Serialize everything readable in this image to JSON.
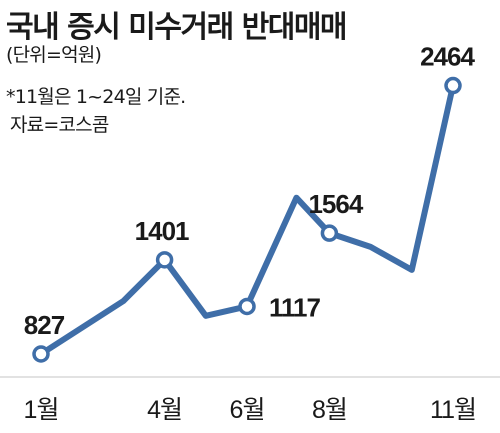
{
  "header": {
    "title": "국내 증시 미수거래 반대매매",
    "unit": "(단위=억원)",
    "note": "*11월은 1~24일 기준.",
    "source": "자료=코스콤"
  },
  "chart_data": {
    "type": "line",
    "title": "국내 증시 미수거래 반대매매",
    "unit": "억원",
    "x_ticks": [
      "1월",
      "4월",
      "6월",
      "8월",
      "11월"
    ],
    "points": [
      {
        "x": 1.0,
        "y": 827,
        "label": "827",
        "marker": true
      },
      {
        "x": 3.0,
        "y": 1150,
        "label": null,
        "marker": false
      },
      {
        "x": 4.0,
        "y": 1401,
        "label": "1401",
        "marker": true
      },
      {
        "x": 5.0,
        "y": 1060,
        "label": null,
        "marker": false
      },
      {
        "x": 6.0,
        "y": 1117,
        "label": "1117",
        "marker": true
      },
      {
        "x": 7.2,
        "y": 1780,
        "label": null,
        "marker": false
      },
      {
        "x": 8.0,
        "y": 1564,
        "label": "1564",
        "marker": true
      },
      {
        "x": 9.0,
        "y": 1480,
        "label": null,
        "marker": false
      },
      {
        "x": 10.0,
        "y": 1340,
        "label": null,
        "marker": false
      },
      {
        "x": 11.0,
        "y": 2464,
        "label": "2464",
        "marker": true
      }
    ],
    "line_color": "#3f6ea8",
    "marker_fill": "#ffffff"
  }
}
